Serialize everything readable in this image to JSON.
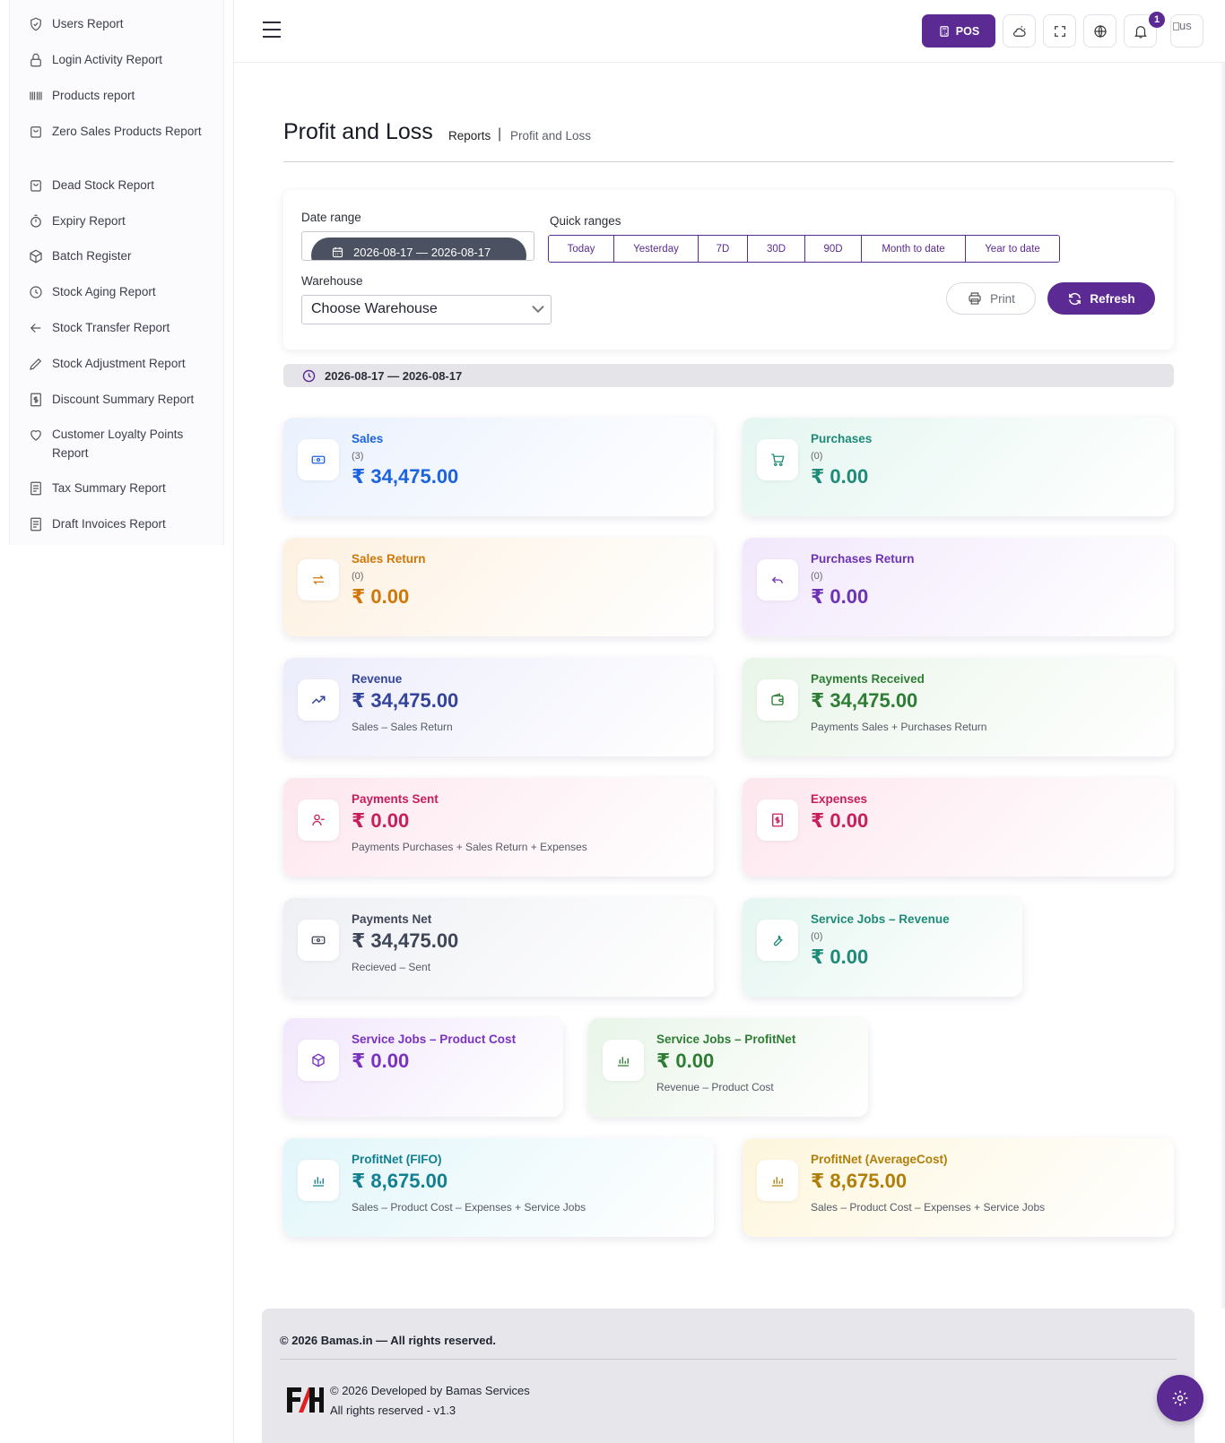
{
  "sidebar": {
    "items": [
      {
        "label": "Users Report",
        "icon": "shield-icon"
      },
      {
        "label": "Login Activity Report",
        "icon": "lock-icon"
      },
      {
        "label": "Products report",
        "icon": "barcode-icon"
      },
      {
        "label": "Zero Sales Products Report",
        "icon": "bag-icon"
      },
      {
        "label": "Dead Stock Report",
        "icon": "bag-icon"
      },
      {
        "label": "Expiry Report",
        "icon": "timer-icon"
      },
      {
        "label": "Batch Register",
        "icon": "box-icon"
      },
      {
        "label": "Stock Aging Report",
        "icon": "clock-icon"
      },
      {
        "label": "Stock Transfer Report",
        "icon": "arrow-left-icon"
      },
      {
        "label": "Stock Adjustment Report",
        "icon": "pencil-icon"
      },
      {
        "label": "Discount Summary Report",
        "icon": "dollar-doc-icon"
      },
      {
        "label": "Customer Loyalty Points Report",
        "icon": "heart-icon"
      },
      {
        "label": "Tax Summary Report",
        "icon": "document-icon"
      },
      {
        "label": "Draft Invoices Report",
        "icon": "document-icon"
      }
    ]
  },
  "header": {
    "pos_label": "POS",
    "notification_count": "1",
    "avatar_alt": "us"
  },
  "page": {
    "title": "Profit and Loss",
    "breadcrumb_parent": "Reports",
    "breadcrumb_sep": "|",
    "breadcrumb_current": "Profit and Loss"
  },
  "filters": {
    "date_range_label": "Date range",
    "date_range_value": "2026-08-17 — 2026-08-17",
    "quick_ranges_label": "Quick ranges",
    "quick_ranges": [
      "Today",
      "Yesterday",
      "7D",
      "30D",
      "90D",
      "Month to date",
      "Year to date"
    ],
    "warehouse_label": "Warehouse",
    "warehouse_value": "Choose Warehouse",
    "print_label": "Print",
    "refresh_label": "Refresh"
  },
  "range_summary": "2026-08-17 — 2026-08-17",
  "cards": {
    "sales": {
      "title": "Sales",
      "count": "(3)",
      "value": "₹ 34,475.00"
    },
    "purchases": {
      "title": "Purchases",
      "count": "(0)",
      "value": "₹ 0.00"
    },
    "sales_return": {
      "title": "Sales Return",
      "count": "(0)",
      "value": "₹ 0.00"
    },
    "purchases_return": {
      "title": "Purchases Return",
      "count": "(0)",
      "value": "₹ 0.00"
    },
    "revenue": {
      "title": "Revenue",
      "value": "₹ 34,475.00",
      "sub": "Sales – Sales Return"
    },
    "payments_received": {
      "title": "Payments Received",
      "value": "₹ 34,475.00",
      "sub": "Payments Sales + Purchases Return"
    },
    "payments_sent": {
      "title": "Payments Sent",
      "value": "₹ 0.00",
      "sub": "Payments Purchases + Sales Return + Expenses"
    },
    "expenses": {
      "title": "Expenses",
      "value": "₹ 0.00"
    },
    "payments_net": {
      "title": "Payments Net",
      "value": "₹ 34,475.00",
      "sub": "Recieved – Sent"
    },
    "service_revenue": {
      "title": "Service Jobs – Revenue",
      "count": "(0)",
      "value": "₹ 0.00"
    },
    "service_cost": {
      "title": "Service Jobs – Product Cost",
      "value": "₹ 0.00"
    },
    "service_profit": {
      "title": "Service Jobs – ProfitNet",
      "value": "₹ 0.00",
      "sub": "Revenue – Product Cost"
    },
    "profit_fifo": {
      "title": "ProfitNet (FIFO)",
      "value": "₹ 8,675.00",
      "sub": "Sales – Product Cost – Expenses + Service Jobs"
    },
    "profit_avg": {
      "title": "ProfitNet (AverageCost)",
      "value": "₹ 8,675.00",
      "sub": "Sales – Product Cost – Expenses + Service Jobs"
    }
  },
  "footer": {
    "copyright": "© 2026 Bamas.in — All rights reserved.",
    "developer": "© 2026 Developed by Bamas Services",
    "version": "All rights reserved - v1.3"
  },
  "colors": {
    "accent": "#5b2a92",
    "sales": "#1d63e0",
    "purchases": "#1f8a78",
    "sales_return": "#d0770a",
    "purchases_return": "#6d33b5",
    "revenue": "#33449a",
    "payments_received": "#2f7d35",
    "payments_sent": "#c81e5c",
    "expenses": "#c81e5c",
    "payments_net": "#3f4657",
    "service_revenue": "#1f8a78",
    "service_cost": "#7a33c0",
    "service_profit": "#2f7d35",
    "profit_fifo": "#128091",
    "profit_avg": "#b07f0a"
  }
}
